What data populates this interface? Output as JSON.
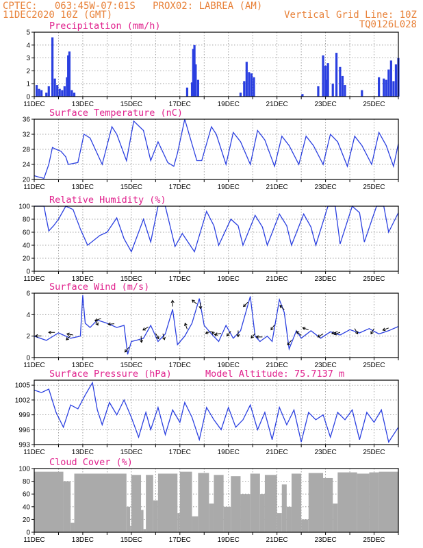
{
  "header": {
    "line1_left": "CPTEC:   063:45W-07:01S   PROX02: LABREA (AM)",
    "line2_left": "11DEC2020 10Z (GMT)",
    "line2_right": "Vertical Grid Line: 10Z",
    "line3_right": "TQ0126L028"
  },
  "colors": {
    "series": "#2a3fe0",
    "title": "#e0208c",
    "header": "#e8823a",
    "cloud": "#aaaaaa"
  },
  "x_tick_labels": [
    "11DEC",
    "13DEC",
    "15DEC",
    "17DEC",
    "19DEC",
    "21DEC",
    "23DEC",
    "25DEC"
  ],
  "chart_data": [
    {
      "type": "bar",
      "title": "Precipitation (mm/h)",
      "x_start": 0,
      "x_end": 15,
      "ylim": [
        0,
        5
      ],
      "yticks": [
        0,
        1,
        2,
        3,
        4,
        5
      ],
      "grid": true,
      "bars": [
        [
          0.1,
          0.9
        ],
        [
          0.2,
          0.6
        ],
        [
          0.3,
          0.5
        ],
        [
          0.5,
          0.3
        ],
        [
          0.6,
          0.8
        ],
        [
          0.75,
          4.6
        ],
        [
          0.85,
          1.4
        ],
        [
          0.95,
          0.9
        ],
        [
          1.05,
          0.6
        ],
        [
          1.15,
          0.5
        ],
        [
          1.25,
          0.8
        ],
        [
          1.35,
          1.5
        ],
        [
          1.4,
          3.2
        ],
        [
          1.45,
          3.5
        ],
        [
          1.55,
          0.5
        ],
        [
          1.65,
          0.3
        ],
        [
          6.3,
          0.7
        ],
        [
          6.5,
          1.1
        ],
        [
          6.55,
          3.7
        ],
        [
          6.6,
          4.0
        ],
        [
          6.65,
          2.5
        ],
        [
          6.75,
          1.3
        ],
        [
          8.5,
          0.3
        ],
        [
          8.65,
          1.2
        ],
        [
          8.75,
          2.7
        ],
        [
          8.85,
          1.9
        ],
        [
          8.95,
          1.8
        ],
        [
          9.05,
          1.5
        ],
        [
          11.05,
          0.2
        ],
        [
          11.7,
          0.8
        ],
        [
          11.9,
          3.2
        ],
        [
          12.0,
          2.4
        ],
        [
          12.05,
          1.3
        ],
        [
          12.1,
          2.6
        ],
        [
          12.3,
          1.0
        ],
        [
          12.45,
          3.4
        ],
        [
          12.6,
          2.3
        ],
        [
          12.7,
          1.6
        ],
        [
          12.8,
          0.9
        ],
        [
          13.5,
          0.5
        ],
        [
          14.2,
          1.5
        ],
        [
          14.4,
          1.4
        ],
        [
          14.5,
          1.3
        ],
        [
          14.6,
          2.1
        ],
        [
          14.7,
          2.8
        ],
        [
          14.8,
          1.2
        ],
        [
          14.9,
          2.5
        ],
        [
          15.0,
          3.0
        ]
      ]
    },
    {
      "type": "line",
      "title": "Surface Temperature (nC)",
      "x_start": 0,
      "x_end": 15,
      "ylim": [
        20,
        36
      ],
      "yticks": [
        20,
        24,
        28,
        32,
        36
      ],
      "grid": true,
      "x": [
        0.0,
        0.15,
        0.4,
        0.6,
        0.75,
        0.9,
        1.1,
        1.3,
        1.4,
        1.8,
        2.05,
        2.3,
        2.8,
        3.2,
        3.4,
        3.8,
        4.1,
        4.5,
        4.8,
        5.1,
        5.5,
        5.75,
        5.9,
        6.2,
        6.7,
        6.9,
        7.3,
        7.5,
        7.9,
        8.2,
        8.5,
        8.9,
        9.2,
        9.5,
        9.9,
        10.2,
        10.5,
        10.9,
        11.2,
        11.5,
        11.9,
        12.2,
        12.5,
        12.9,
        13.2,
        13.5,
        13.9,
        14.2,
        14.5,
        14.8,
        15.0
      ],
      "y": [
        21.0,
        20.7,
        20.3,
        24.0,
        28.5,
        28.0,
        27.5,
        26.0,
        24.0,
        24.5,
        32.0,
        31.0,
        24.0,
        34.0,
        32.0,
        25.0,
        35.5,
        33.0,
        25.0,
        30.0,
        24.5,
        23.5,
        27.0,
        36.0,
        25.0,
        25.0,
        34.0,
        32.0,
        24.0,
        32.5,
        30.0,
        24.0,
        33.0,
        30.5,
        23.5,
        31.5,
        29.0,
        24.0,
        31.5,
        29.0,
        24.0,
        32.0,
        30.0,
        23.5,
        31.5,
        29.0,
        24.0,
        32.5,
        29.0,
        23.5,
        29.5
      ]
    },
    {
      "type": "line",
      "title": "Relative Humidity (%)",
      "x_start": 0,
      "x_end": 15,
      "ylim": [
        0,
        100
      ],
      "yticks": [
        0,
        20,
        40,
        60,
        80,
        100
      ],
      "grid": true,
      "x": [
        0.0,
        0.4,
        0.6,
        0.8,
        1.0,
        1.3,
        1.6,
        1.9,
        2.2,
        2.7,
        3.0,
        3.4,
        3.7,
        4.0,
        4.5,
        4.8,
        5.1,
        5.4,
        5.8,
        6.1,
        6.6,
        7.1,
        7.4,
        7.6,
        8.1,
        8.4,
        8.6,
        9.1,
        9.4,
        9.6,
        10.1,
        10.4,
        10.6,
        11.1,
        11.4,
        11.6,
        12.1,
        12.4,
        12.6,
        13.1,
        13.4,
        13.6,
        14.1,
        14.4,
        14.6,
        15.0
      ],
      "y": [
        100,
        100,
        62,
        70,
        80,
        100,
        95,
        65,
        40,
        55,
        60,
        82,
        50,
        30,
        80,
        45,
        100,
        100,
        38,
        58,
        30,
        92,
        70,
        40,
        80,
        70,
        40,
        86,
        68,
        40,
        88,
        70,
        40,
        88,
        68,
        40,
        100,
        100,
        42,
        100,
        90,
        45,
        100,
        100,
        60,
        90
      ]
    },
    {
      "type": "line",
      "title": "Surface Wind (m/s)",
      "x_start": 0,
      "x_end": 15,
      "ylim": [
        0,
        6
      ],
      "yticks": [
        0,
        2,
        4,
        6
      ],
      "grid": true,
      "x": [
        0.0,
        0.5,
        1.0,
        1.5,
        1.9,
        2.0,
        2.1,
        2.3,
        2.6,
        3.0,
        3.4,
        3.7,
        3.85,
        4.0,
        4.2,
        4.5,
        4.8,
        5.1,
        5.4,
        5.7,
        5.9,
        6.2,
        6.5,
        6.8,
        7.0,
        7.3,
        7.6,
        7.9,
        8.2,
        8.5,
        8.9,
        9.1,
        9.3,
        9.6,
        9.8,
        10.1,
        10.3,
        10.5,
        10.8,
        11.0,
        11.4,
        11.8,
        12.2,
        12.6,
        13.0,
        13.4,
        13.8,
        14.2,
        14.6,
        15.0
      ],
      "y": [
        2.0,
        1.6,
        2.3,
        1.8,
        2.0,
        5.8,
        3.2,
        2.8,
        3.5,
        3.2,
        2.8,
        3.0,
        0.3,
        1.5,
        1.6,
        1.8,
        3.0,
        1.5,
        2.2,
        4.5,
        1.2,
        2.0,
        3.2,
        5.5,
        3.0,
        2.2,
        1.5,
        3.0,
        1.8,
        2.5,
        5.7,
        2.0,
        1.5,
        2.0,
        1.5,
        5.4,
        4.2,
        0.8,
        2.5,
        1.8,
        2.5,
        1.8,
        2.4,
        2.1,
        2.6,
        2.3,
        2.7,
        2.2,
        2.5,
        2.9
      ],
      "arrows": [
        [
          0.3,
          180
        ],
        [
          0.85,
          180
        ],
        [
          1.5,
          225
        ],
        [
          1.6,
          170
        ],
        [
          2.5,
          300
        ],
        [
          2.75,
          200
        ],
        [
          3.3,
          185
        ],
        [
          3.9,
          230
        ],
        [
          4.4,
          275
        ],
        [
          4.7,
          210
        ],
        [
          5.0,
          300
        ],
        [
          5.3,
          285
        ],
        [
          5.7,
          90
        ],
        [
          6.3,
          110
        ],
        [
          6.7,
          140
        ],
        [
          6.85,
          270
        ],
        [
          7.3,
          200
        ],
        [
          7.5,
          135
        ],
        [
          7.7,
          190
        ],
        [
          8.1,
          230
        ],
        [
          8.4,
          270
        ],
        [
          8.8,
          225
        ],
        [
          9.1,
          230
        ],
        [
          9.4,
          180
        ],
        [
          9.9,
          235
        ],
        [
          10.3,
          135
        ],
        [
          10.6,
          230
        ],
        [
          11.0,
          140
        ],
        [
          11.3,
          160
        ],
        [
          11.9,
          210
        ],
        [
          12.5,
          200
        ],
        [
          12.6,
          200
        ],
        [
          13.2,
          300
        ],
        [
          14.0,
          240
        ],
        [
          14.6,
          200
        ]
      ]
    },
    {
      "type": "line",
      "title": "Surface Pressure (hPa)",
      "annotation": "Model Altitude: 75.7137 m",
      "x_start": 0,
      "x_end": 15,
      "ylim": [
        993,
        1006
      ],
      "yticks": [
        993,
        996,
        999,
        1002,
        1005
      ],
      "grid": true,
      "x": [
        0.0,
        0.3,
        0.6,
        0.9,
        1.2,
        1.5,
        1.8,
        2.1,
        2.4,
        2.6,
        2.8,
        3.1,
        3.4,
        3.7,
        4.0,
        4.3,
        4.6,
        4.8,
        5.1,
        5.4,
        5.7,
        6.0,
        6.2,
        6.5,
        6.8,
        7.1,
        7.4,
        7.7,
        8.0,
        8.3,
        8.6,
        8.9,
        9.2,
        9.5,
        9.8,
        10.1,
        10.4,
        10.7,
        11.0,
        11.3,
        11.6,
        11.9,
        12.2,
        12.5,
        12.8,
        13.1,
        13.4,
        13.7,
        14.0,
        14.3,
        14.6,
        15.0
      ],
      "y": [
        1004.0,
        1003.5,
        1004.2,
        999.5,
        996.5,
        1001.0,
        1000.2,
        1003.0,
        1005.5,
        1000.0,
        997.0,
        1001.5,
        999.0,
        1002.0,
        998.5,
        994.5,
        999.5,
        996.0,
        1000.5,
        995.0,
        1000.0,
        997.5,
        1001.5,
        998.5,
        994.0,
        1000.5,
        998.0,
        996.0,
        1000.5,
        996.5,
        998.0,
        1001.0,
        996.0,
        999.5,
        994.0,
        1000.5,
        997.0,
        1000.0,
        993.5,
        999.5,
        998.0,
        999.0,
        994.5,
        999.5,
        998.0,
        1000.0,
        994.0,
        999.5,
        997.5,
        1000.0,
        993.5,
        996.5
      ]
    },
    {
      "type": "bar",
      "title": "Cloud Cover (%)",
      "x_start": 0,
      "x_end": 15,
      "ylim": [
        0,
        100
      ],
      "yticks": [
        0,
        20,
        40,
        60,
        80,
        100
      ],
      "grid": true,
      "segments": [
        [
          0.0,
          1.2,
          95
        ],
        [
          1.2,
          1.5,
          80
        ],
        [
          1.5,
          1.65,
          15
        ],
        [
          1.65,
          3.8,
          92
        ],
        [
          3.8,
          3.95,
          40
        ],
        [
          3.95,
          4.0,
          10
        ],
        [
          4.0,
          4.4,
          90
        ],
        [
          4.4,
          4.5,
          35
        ],
        [
          4.5,
          4.6,
          5
        ],
        [
          4.6,
          4.9,
          90
        ],
        [
          4.9,
          5.1,
          50
        ],
        [
          5.1,
          5.9,
          92
        ],
        [
          5.9,
          6.0,
          30
        ],
        [
          6.0,
          6.5,
          95
        ],
        [
          6.5,
          6.75,
          25
        ],
        [
          6.75,
          7.2,
          93
        ],
        [
          7.2,
          7.4,
          45
        ],
        [
          7.4,
          7.8,
          90
        ],
        [
          7.8,
          8.1,
          40
        ],
        [
          8.1,
          8.5,
          88
        ],
        [
          8.5,
          8.9,
          60
        ],
        [
          8.9,
          9.3,
          92
        ],
        [
          9.3,
          9.5,
          60
        ],
        [
          9.5,
          10.0,
          90
        ],
        [
          10.0,
          10.2,
          30
        ],
        [
          10.2,
          10.4,
          75
        ],
        [
          10.4,
          10.6,
          40
        ],
        [
          10.6,
          11.0,
          92
        ],
        [
          11.0,
          11.3,
          20
        ],
        [
          11.3,
          11.9,
          93
        ],
        [
          11.9,
          12.3,
          85
        ],
        [
          12.3,
          12.5,
          45
        ],
        [
          12.5,
          13.3,
          94
        ],
        [
          13.3,
          13.8,
          92
        ],
        [
          13.8,
          14.2,
          94
        ],
        [
          14.2,
          15.0,
          95
        ]
      ]
    }
  ]
}
